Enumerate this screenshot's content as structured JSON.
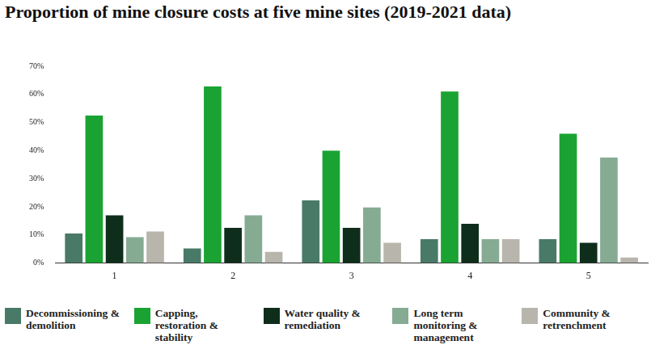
{
  "chart_data": {
    "type": "bar",
    "title": "Proportion of mine closure costs at five mine sites (2019-2021 data)",
    "categories": [
      "1",
      "2",
      "3",
      "4",
      "5"
    ],
    "series": [
      {
        "name": "Decommissioning & demolition",
        "color": "#497a68",
        "values": [
          10.5,
          5.2,
          22.3,
          8.5,
          8.5
        ]
      },
      {
        "name": "Capping, restoration & stability",
        "color": "#1aa332",
        "values": [
          52.5,
          62.8,
          40,
          61,
          46
        ]
      },
      {
        "name": "Water quality & remediation",
        "color": "#0e2e1b",
        "values": [
          17,
          12.5,
          12.5,
          14,
          7.2
        ]
      },
      {
        "name": "Long term monitoring & management",
        "color": "#86ab93",
        "values": [
          9.2,
          17,
          19.8,
          8.5,
          37.5
        ]
      },
      {
        "name": "Community & retrenchment",
        "color": "#b8b5ac",
        "values": [
          11.2,
          4,
          7.2,
          8.5,
          2
        ]
      }
    ],
    "ylim": [
      0,
      70
    ],
    "yticks": [
      {
        "value": 0,
        "label": "0%"
      },
      {
        "value": 10,
        "label": "10%"
      },
      {
        "value": 20,
        "label": "20%"
      },
      {
        "value": 30,
        "label": "30%"
      },
      {
        "value": 40,
        "label": "40%"
      },
      {
        "value": 50,
        "label": "50%"
      },
      {
        "value": 60,
        "label": "60%"
      },
      {
        "value": 70,
        "label": "70%"
      }
    ],
    "grid": false,
    "legend": "bottom"
  }
}
